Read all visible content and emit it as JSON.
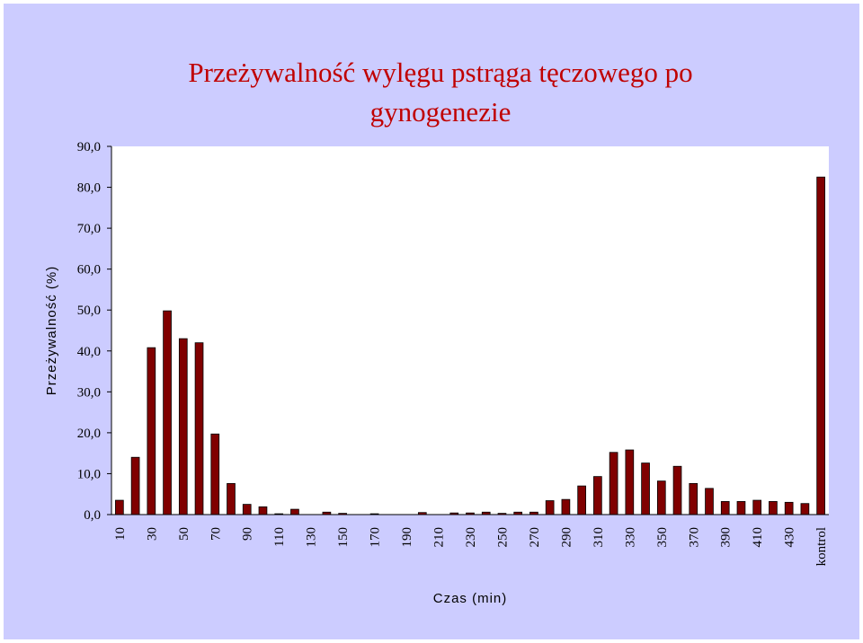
{
  "chart_data": {
    "type": "bar",
    "title_line1": "Przeżywalność wylęgu pstrąga tęczowego po",
    "title_line2": "gynogenezie",
    "xlabel": "Czas (min)",
    "ylabel": "Przeżywalność (%)",
    "ylim": [
      0,
      90
    ],
    "yticks": [
      "0,0",
      "10,0",
      "20,0",
      "30,0",
      "40,0",
      "50,0",
      "60,0",
      "70,0",
      "80,0",
      "90,0"
    ],
    "categories": [
      "10",
      "20",
      "30",
      "40",
      "50",
      "60",
      "70",
      "80",
      "90",
      "100",
      "110",
      "120",
      "130",
      "140",
      "150",
      "160",
      "170",
      "180",
      "190",
      "200",
      "210",
      "220",
      "230",
      "240",
      "250",
      "260",
      "270",
      "280",
      "290",
      "300",
      "310",
      "320",
      "330",
      "340",
      "350",
      "360",
      "370",
      "380",
      "390",
      "400",
      "410",
      "420",
      "430",
      "440",
      "kontrol"
    ],
    "visible_tick_labels": [
      "10",
      "30",
      "50",
      "70",
      "90",
      "110",
      "130",
      "150",
      "170",
      "190",
      "210",
      "230",
      "250",
      "270",
      "290",
      "310",
      "330",
      "350",
      "370",
      "390",
      "410",
      "430",
      "kontrol"
    ],
    "values": [
      3.5,
      14.0,
      40.8,
      49.8,
      43.0,
      42.0,
      19.7,
      7.6,
      2.5,
      1.9,
      0.2,
      1.3,
      0.0,
      0.6,
      0.3,
      0.0,
      0.2,
      0.0,
      0.0,
      0.5,
      0.0,
      0.4,
      0.4,
      0.6,
      0.3,
      0.6,
      0.6,
      3.4,
      3.7,
      7.0,
      9.3,
      15.2,
      15.8,
      12.6,
      8.2,
      11.8,
      7.6,
      6.4,
      3.2,
      3.2,
      3.5,
      3.2,
      3.0,
      2.7,
      82.5
    ],
    "bar_color": "#800000",
    "plot_background": "#ffffff",
    "outer_background": "#ccccff",
    "grid": false,
    "legend": "none"
  }
}
